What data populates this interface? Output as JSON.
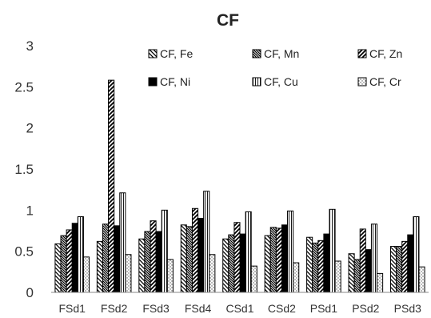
{
  "chart_data": {
    "type": "bar",
    "title": "CF",
    "xlabel": "",
    "ylabel": "",
    "ylim": [
      0,
      3
    ],
    "yticks": [
      0,
      0.5,
      1,
      1.5,
      2,
      2.5,
      3
    ],
    "ytick_labels": [
      "0",
      "0.5",
      "1",
      "1.5",
      "2",
      "2.5",
      "3"
    ],
    "grid": false,
    "legend_position": "top-inside",
    "categories": [
      "FSd1",
      "FSd2",
      "FSd3",
      "FSd4",
      "CSd1",
      "CSd2",
      "PSd1",
      "PSd2",
      "PSd3"
    ],
    "series": [
      {
        "name": "CF, Fe",
        "pattern": "backslash-hatch",
        "values": [
          0.59,
          0.62,
          0.65,
          0.82,
          0.65,
          0.69,
          0.67,
          0.47,
          0.56
        ]
      },
      {
        "name": "CF, Mn",
        "pattern": "dense-backslash",
        "values": [
          0.69,
          0.83,
          0.74,
          0.8,
          0.7,
          0.79,
          0.6,
          0.4,
          0.56
        ]
      },
      {
        "name": "CF, Zn",
        "pattern": "slash-hatch",
        "values": [
          0.76,
          2.58,
          0.87,
          1.02,
          0.85,
          0.78,
          0.63,
          0.77,
          0.62
        ]
      },
      {
        "name": "CF, Ni",
        "pattern": "solid-black",
        "values": [
          0.84,
          0.81,
          0.74,
          0.9,
          0.71,
          0.82,
          0.71,
          0.52,
          0.7
        ]
      },
      {
        "name": "CF, Cu",
        "pattern": "vertical-lines",
        "values": [
          0.92,
          1.21,
          1.0,
          1.23,
          0.98,
          0.99,
          1.01,
          0.83,
          0.92
        ]
      },
      {
        "name": "CF, Cr",
        "pattern": "dotted",
        "values": [
          0.43,
          0.46,
          0.4,
          0.46,
          0.32,
          0.36,
          0.38,
          0.23,
          0.31
        ]
      }
    ],
    "colors": {
      "ink": "#000000",
      "axis": "#888888",
      "background": "#ffffff"
    }
  }
}
